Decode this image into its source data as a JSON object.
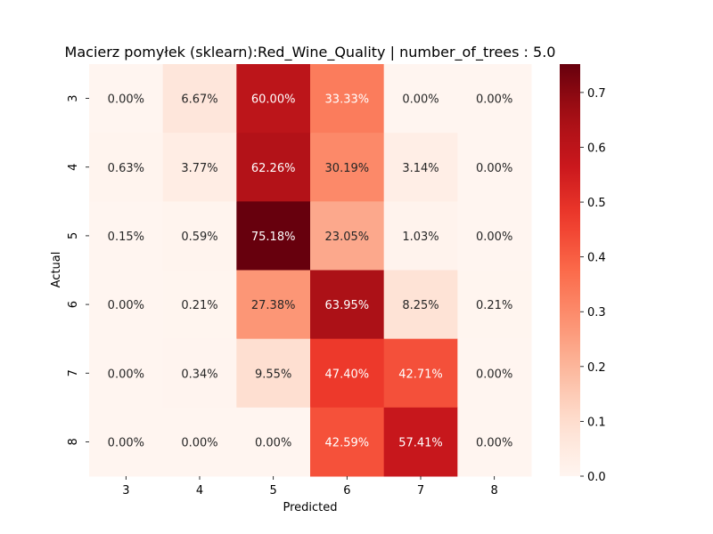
{
  "chart_data": {
    "type": "heatmap",
    "title": "Macierz pomyłek (sklearn):Red_Wine_Quality | number_of_trees : 5.0",
    "xlabel": "Predicted",
    "ylabel": "Actual",
    "x_categories": [
      "3",
      "4",
      "5",
      "6",
      "7",
      "8"
    ],
    "y_categories": [
      "3",
      "4",
      "5",
      "6",
      "7",
      "8"
    ],
    "values": [
      [
        0.0,
        0.0667,
        0.6,
        0.3333,
        0.0,
        0.0
      ],
      [
        0.0063,
        0.0377,
        0.6226,
        0.3019,
        0.0314,
        0.0
      ],
      [
        0.0015,
        0.0059,
        0.7518,
        0.2305,
        0.0103,
        0.0
      ],
      [
        0.0,
        0.0021,
        0.2738,
        0.6395,
        0.0825,
        0.0021
      ],
      [
        0.0,
        0.0034,
        0.0955,
        0.474,
        0.4271,
        0.0
      ],
      [
        0.0,
        0.0,
        0.0,
        0.4259,
        0.5741,
        0.0
      ]
    ],
    "annotations": [
      [
        "0.00%",
        "6.67%",
        "60.00%",
        "33.33%",
        "0.00%",
        "0.00%"
      ],
      [
        "0.63%",
        "3.77%",
        "62.26%",
        "30.19%",
        "3.14%",
        "0.00%"
      ],
      [
        "0.15%",
        "0.59%",
        "75.18%",
        "23.05%",
        "1.03%",
        "0.00%"
      ],
      [
        "0.00%",
        "0.21%",
        "27.38%",
        "63.95%",
        "8.25%",
        "0.21%"
      ],
      [
        "0.00%",
        "0.34%",
        "9.55%",
        "47.40%",
        "42.71%",
        "0.00%"
      ],
      [
        "0.00%",
        "0.00%",
        "0.00%",
        "42.59%",
        "57.41%",
        "0.00%"
      ]
    ],
    "colormap": "Reds",
    "colorbar": {
      "min": 0.0,
      "max": 0.7518,
      "ticks": [
        0.0,
        0.1,
        0.2,
        0.3,
        0.4,
        0.5,
        0.6,
        0.7
      ],
      "tick_labels": [
        "0.0",
        "0.1",
        "0.2",
        "0.3",
        "0.4",
        "0.5",
        "0.6",
        "0.7"
      ]
    },
    "grid": false
  }
}
